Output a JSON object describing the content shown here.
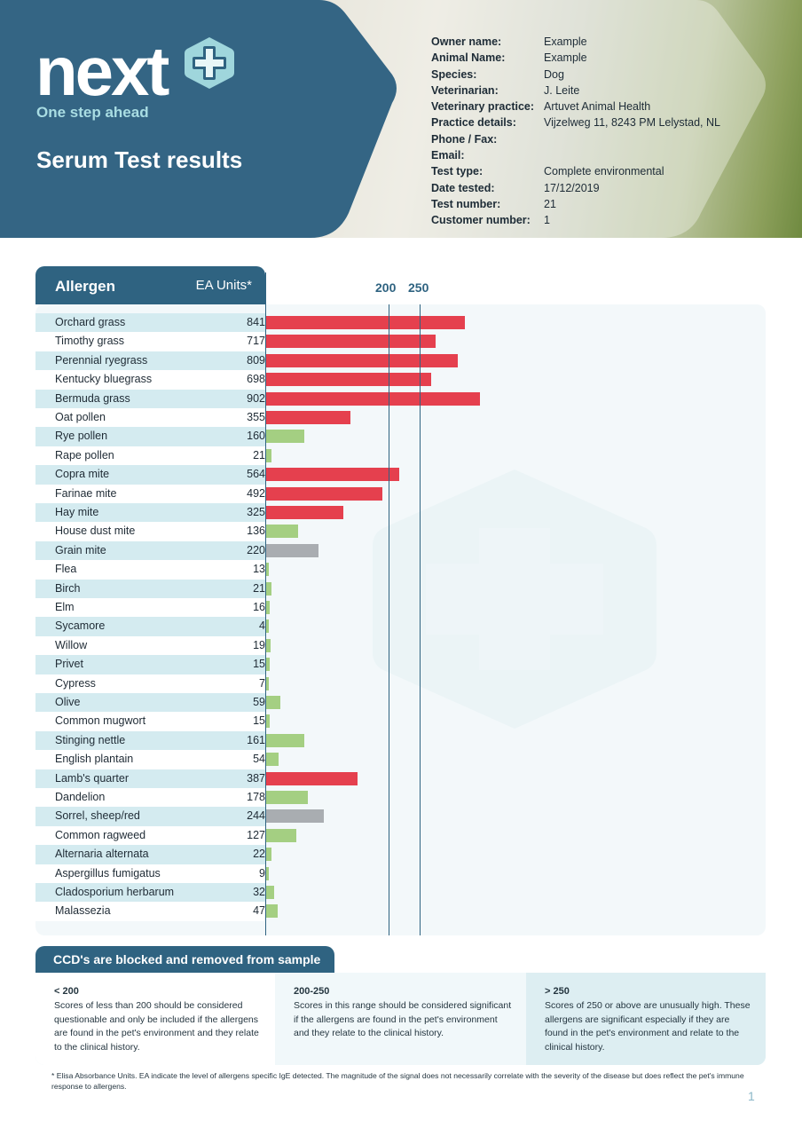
{
  "header": {
    "logo_word": "next",
    "logo_tagline": "One step ahead",
    "title": "Serum Test results",
    "details": [
      {
        "label": "Owner name:",
        "value": "Example"
      },
      {
        "label": "Animal Name:",
        "value": "Example"
      },
      {
        "label": "Species:",
        "value": "Dog"
      },
      {
        "label": "Veterinarian:",
        "value": "J. Leite"
      },
      {
        "label": "Veterinary practice:",
        "value": "Artuvet Animal Health"
      },
      {
        "label": "Practice details:",
        "value": "Vijzelweg 11, 8243 PM Lelystad, NL"
      },
      {
        "label": "Phone / Fax:",
        "value": ""
      },
      {
        "label": "Email:",
        "value": ""
      },
      {
        "label": "Test type:",
        "value": "Complete environmental"
      },
      {
        "label": "Date tested:",
        "value": "17/12/2019"
      },
      {
        "label": "Test number:",
        "value": "21"
      },
      {
        "label": "Customer number:",
        "value": "1"
      }
    ]
  },
  "colors": {
    "high": "#e5404e",
    "medium": "#a9adb1",
    "low": "#a4cf82",
    "brand": "#2f6381"
  },
  "chart_data": {
    "type": "bar",
    "orientation": "horizontal",
    "column_headers": {
      "allergen": "Allergen",
      "units": "EA Units*"
    },
    "reference_lines": [
      200,
      250
    ],
    "reference_labels": [
      "200",
      "250"
    ],
    "xlim": [
      0,
      1000
    ],
    "categories": [
      "Orchard grass",
      "Timothy grass",
      "Perennial ryegrass",
      "Kentucky bluegrass",
      "Bermuda grass",
      "Oat pollen",
      "Rye pollen",
      "Rape pollen",
      "Copra mite",
      "Farinae mite",
      "Hay mite",
      "House dust mite",
      "Grain mite",
      "Flea",
      "Birch",
      "Elm",
      "Sycamore",
      "Willow",
      "Privet",
      "Cypress",
      "Olive",
      "Common mugwort",
      "Stinging nettle",
      "English plantain",
      "Lamb's quarter",
      "Dandelion",
      "Sorrel, sheep/red",
      "Common ragweed",
      "Alternaria alternata",
      "Aspergillus fumigatus",
      "Cladosporium herbarum",
      "Malassezia"
    ],
    "values": [
      841,
      717,
      809,
      698,
      902,
      355,
      160,
      21,
      564,
      492,
      325,
      136,
      220,
      13,
      21,
      16,
      4,
      19,
      15,
      7,
      59,
      15,
      161,
      54,
      387,
      178,
      244,
      127,
      22,
      9,
      32,
      47
    ]
  },
  "footer": {
    "ccd_banner": "CCD's are blocked and removed from sample",
    "legend": [
      {
        "heading": "< 200",
        "text": "Scores of less than 200 should be considered questionable and only be included if the allergens are found in the pet's environment and they relate to the clinical history."
      },
      {
        "heading": "200-250",
        "text": "Scores in this range should be considered significant if the allergens are found in the pet's environment and they relate to the clinical history."
      },
      {
        "heading": "> 250",
        "text": "Scores of 250 or above are unusually high. These allergens are significant especially if they are found in the pet's environment and relate to the clinical history."
      }
    ],
    "footnote": "* Elisa Absorbance Units. EA indicate the level of allergens specific IgE detected. The magnitude of the signal does not necessarily correlate with the severity of the disease but does reflect the pet's immune response to allergens.",
    "page_number": "1"
  }
}
